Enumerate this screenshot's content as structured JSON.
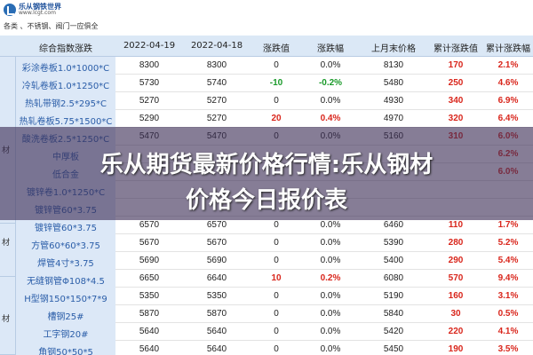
{
  "logo": {
    "name": "乐从钢铁世界",
    "url": "www.lcgt.com"
  },
  "ticker": [
    "各类 、不锈钢、阀门一应俱全"
  ],
  "header": {
    "col0": "",
    "col1": "综合指数涨跌",
    "col2": "2022-04-19",
    "col3": "2022-04-18",
    "col4": "涨跌值",
    "col5": "涨跌幅",
    "col6": "上月末价格",
    "col7": "累计涨跌值",
    "col8": "累计涨跌幅"
  },
  "categories": [
    {
      "label": "材"
    },
    {
      "label": "材"
    },
    {
      "label": "材"
    }
  ],
  "rows": [
    {
      "name": "彩涂卷板1.0*1000*C",
      "d1": "8300",
      "d2": "8300",
      "chg": "0",
      "pct": "0.0%",
      "prev": "8130",
      "cum": "170",
      "cumpct": "2.1%",
      "chg_color": "none"
    },
    {
      "name": "冷轧卷板1.0*1250*C",
      "d1": "5730",
      "d2": "5740",
      "chg": "-10",
      "pct": "-0.2%",
      "prev": "5480",
      "cum": "250",
      "cumpct": "4.6%",
      "chg_color": "green"
    },
    {
      "name": "热轧带钢2.5*295*C",
      "d1": "5270",
      "d2": "5270",
      "chg": "0",
      "pct": "0.0%",
      "prev": "4930",
      "cum": "340",
      "cumpct": "6.9%",
      "chg_color": "none"
    },
    {
      "name": "热轧卷板5.75*1500*C",
      "d1": "5290",
      "d2": "5270",
      "chg": "20",
      "pct": "0.4%",
      "prev": "4970",
      "cum": "320",
      "cumpct": "6.4%",
      "chg_color": "red"
    },
    {
      "name": "酸洗卷板2.5*1250*C",
      "d1": "5470",
      "d2": "5470",
      "chg": "0",
      "pct": "0.0%",
      "prev": "5160",
      "cum": "310",
      "cumpct": "6.0%",
      "chg_color": "none"
    },
    {
      "name": "中厚板",
      "d1": "",
      "d2": "",
      "chg": "",
      "pct": "",
      "prev": "",
      "cum": "",
      "cumpct": "6.2%",
      "chg_color": "none"
    },
    {
      "name": "低合金",
      "d1": "",
      "d2": "",
      "chg": "",
      "pct": "",
      "prev": "",
      "cum": "",
      "cumpct": "6.0%",
      "chg_color": "none"
    },
    {
      "name": "镀锌卷1.0*1250*C",
      "d1": "",
      "d2": "",
      "chg": "",
      "pct": "",
      "prev": "",
      "cum": "",
      "cumpct": "",
      "chg_color": "none"
    },
    {
      "name": "镀锌管60*3.75",
      "d1": "",
      "d2": "",
      "chg": "",
      "pct": "",
      "prev": "",
      "cum": "",
      "cumpct": "",
      "chg_color": "none"
    },
    {
      "name": "镀锌管60*3.75",
      "d1": "6570",
      "d2": "6570",
      "chg": "0",
      "pct": "0.0%",
      "prev": "6460",
      "cum": "110",
      "cumpct": "1.7%",
      "chg_color": "none"
    },
    {
      "name": "方管60*60*3.75",
      "d1": "5670",
      "d2": "5670",
      "chg": "0",
      "pct": "0.0%",
      "prev": "5390",
      "cum": "280",
      "cumpct": "5.2%",
      "chg_color": "none"
    },
    {
      "name": "焊管4寸*3.75",
      "d1": "5690",
      "d2": "5690",
      "chg": "0",
      "pct": "0.0%",
      "prev": "5400",
      "cum": "290",
      "cumpct": "5.4%",
      "chg_color": "none"
    },
    {
      "name": "无缝钢管Φ108*4.5",
      "d1": "6650",
      "d2": "6640",
      "chg": "10",
      "pct": "0.2%",
      "prev": "6080",
      "cum": "570",
      "cumpct": "9.4%",
      "chg_color": "red"
    },
    {
      "name": "H型钢150*150*7*9",
      "d1": "5350",
      "d2": "5350",
      "chg": "0",
      "pct": "0.0%",
      "prev": "5190",
      "cum": "160",
      "cumpct": "3.1%",
      "chg_color": "none"
    },
    {
      "name": "槽钢25#",
      "d1": "5870",
      "d2": "5870",
      "chg": "0",
      "pct": "0.0%",
      "prev": "5840",
      "cum": "30",
      "cumpct": "0.5%",
      "chg_color": "none"
    },
    {
      "name": "工字钢20#",
      "d1": "5640",
      "d2": "5640",
      "chg": "0",
      "pct": "0.0%",
      "prev": "5420",
      "cum": "220",
      "cumpct": "4.1%",
      "chg_color": "none"
    },
    {
      "name": "角钢50*50*5",
      "d1": "5640",
      "d2": "5640",
      "chg": "0",
      "pct": "0.0%",
      "prev": "5450",
      "cum": "190",
      "cumpct": "3.5%",
      "chg_color": "none"
    }
  ],
  "overlay": {
    "line1": "乐从期货最新价格行情:乐从钢材",
    "line2": "价格今日报价表"
  }
}
